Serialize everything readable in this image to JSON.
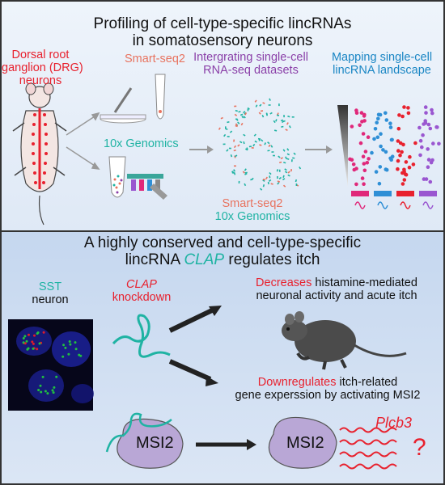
{
  "top_panel": {
    "title_line1": "Profiling of cell-type-specific lincRNAs",
    "title_line2": "in somatosensory neurons",
    "drg_line1": "Dorsal root",
    "drg_line2": "ganglion (DRG)",
    "drg_line3": "neurons",
    "smartseq_label": "Smart-seq2",
    "tenx_label": "10x Genomics",
    "integrating_line1": "Intergrating single-cell",
    "integrating_line2": "RNA-seq datasets",
    "mapping_line1": "Mapping single-cell",
    "mapping_line2": "lincRNA landscape",
    "legend_smartseq": "Smart-seq2",
    "legend_tenx": "10x Genomics"
  },
  "bottom_panel": {
    "title_line1": "A highly conserved and cell-type-specific",
    "title_line2_prefix": "lincRNA ",
    "title_line2_gene": "CLAP",
    "title_line2_suffix": " regulates itch",
    "sst_label": "SST",
    "neuron_label": "neuron",
    "clap_label": "CLAP",
    "knockdown_label": "knockdown",
    "decreases_word": "Decreases",
    "decreases_rest": " histamine-mediated",
    "decreases_line2": "neuronal activity and acute itch",
    "downregulates_word": "Downregulates",
    "downregulates_rest": " itch-related",
    "downregulates_line2": "gene experssion by activating MSI2",
    "msi2_label_left": "MSI2",
    "msi2_label_right": "MSI2",
    "plcb3_label": "Plcb3",
    "question_mark": "?"
  },
  "colors": {
    "red": "#e8212e",
    "salmon": "#e8735f",
    "teal": "#1fb3a3",
    "purple": "#8a3fa8",
    "blue": "#1a86c4",
    "magenta": "#d81b6b",
    "dots_pink": "#e0287a",
    "dots_blue": "#2f8fd6",
    "dots_red": "#e8212e",
    "dots_purple": "#9a56d0",
    "msi2_fill": "#b9a7d6"
  }
}
